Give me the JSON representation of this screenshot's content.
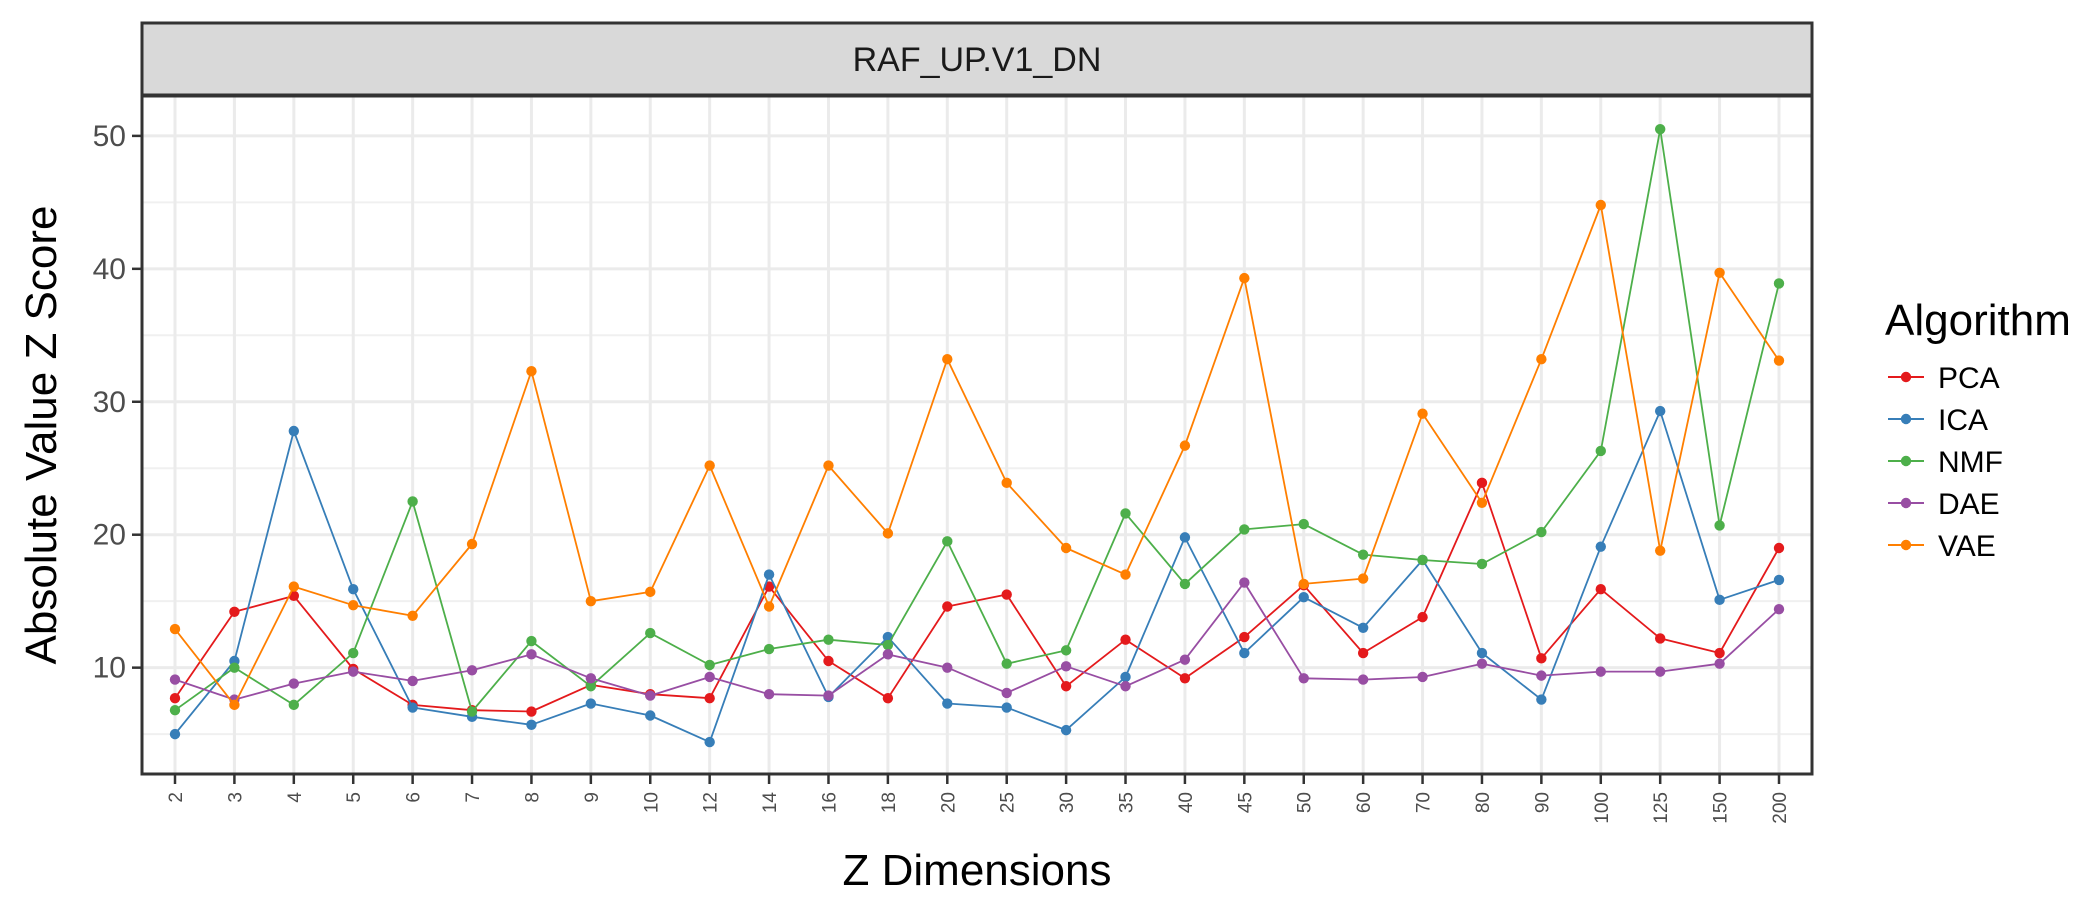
{
  "chart_data": {
    "type": "line",
    "facet_title": "RAF_UP.V1_DN",
    "xlabel": "Z Dimensions",
    "ylabel": "Absolute Value Z Score",
    "categories": [
      "2",
      "3",
      "4",
      "5",
      "6",
      "7",
      "8",
      "9",
      "10",
      "12",
      "14",
      "16",
      "18",
      "20",
      "25",
      "30",
      "35",
      "40",
      "45",
      "50",
      "60",
      "70",
      "80",
      "90",
      "100",
      "125",
      "150",
      "200"
    ],
    "ylim": [
      2,
      53
    ],
    "yticks": [
      10,
      20,
      30,
      40,
      50
    ],
    "grid": true,
    "legend": {
      "title": "Algorithm",
      "position": "right"
    },
    "series": [
      {
        "name": "PCA",
        "color": "#e41a1c",
        "values": [
          7.7,
          14.2,
          15.4,
          9.9,
          7.2,
          6.8,
          6.7,
          8.7,
          8.0,
          7.7,
          16.1,
          10.5,
          7.7,
          14.6,
          15.5,
          8.6,
          12.1,
          9.2,
          12.3,
          16.2,
          11.1,
          13.8,
          23.9,
          10.7,
          15.9,
          12.2,
          11.1,
          19.0
        ]
      },
      {
        "name": "ICA",
        "color": "#377eb8",
        "values": [
          5.0,
          10.5,
          27.8,
          15.9,
          7.0,
          6.3,
          5.7,
          7.3,
          6.4,
          4.4,
          17.0,
          7.8,
          12.3,
          7.3,
          7.0,
          5.3,
          9.3,
          19.8,
          11.1,
          15.3,
          13.0,
          18.1,
          11.1,
          7.6,
          19.1,
          29.3,
          15.1,
          16.6
        ]
      },
      {
        "name": "NMF",
        "color": "#4daf4a",
        "values": [
          6.8,
          10.0,
          7.2,
          11.1,
          22.5,
          6.7,
          12.0,
          8.6,
          12.6,
          10.2,
          11.4,
          12.1,
          11.7,
          19.5,
          10.3,
          11.3,
          21.6,
          16.3,
          20.4,
          20.8,
          18.5,
          18.1,
          17.8,
          20.2,
          26.3,
          50.5,
          20.7,
          38.9
        ]
      },
      {
        "name": "DAE",
        "color": "#984ea3",
        "values": [
          9.1,
          7.6,
          8.8,
          9.7,
          9.0,
          9.8,
          11.0,
          9.2,
          7.9,
          9.3,
          8.0,
          7.9,
          11.0,
          10.0,
          8.1,
          10.1,
          8.6,
          10.6,
          16.4,
          9.2,
          9.1,
          9.3,
          10.3,
          9.4,
          9.7,
          9.7,
          10.3,
          14.4
        ]
      },
      {
        "name": "VAE",
        "color": "#ff7f00",
        "values": [
          12.9,
          7.2,
          16.1,
          14.7,
          13.9,
          19.3,
          32.3,
          15.0,
          15.7,
          25.2,
          14.6,
          25.2,
          20.1,
          33.2,
          23.9,
          19.0,
          17.0,
          26.7,
          39.3,
          16.3,
          16.7,
          29.1,
          22.4,
          33.2,
          44.8,
          18.8,
          39.7,
          33.1
        ]
      }
    ]
  }
}
